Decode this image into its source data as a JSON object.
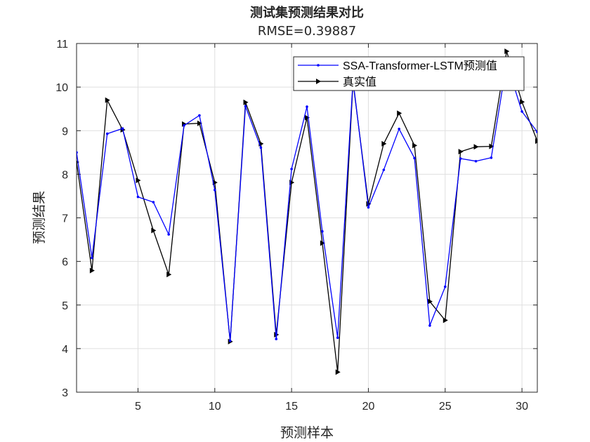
{
  "chart_data": {
    "type": "line",
    "title": "测试集预测结果对比",
    "subtitle": "RMSE=0.39887",
    "xlabel": "预测样本",
    "ylabel": "预测结果",
    "xlim": [
      1,
      31
    ],
    "ylim": [
      3,
      11
    ],
    "xticks": [
      5,
      10,
      15,
      20,
      25,
      30
    ],
    "yticks": [
      3,
      4,
      5,
      6,
      7,
      8,
      9,
      10,
      11
    ],
    "grid": true,
    "legend_position": "top-right",
    "x": [
      1,
      2,
      3,
      4,
      5,
      6,
      7,
      8,
      9,
      10,
      11,
      12,
      13,
      14,
      15,
      16,
      17,
      18,
      19,
      20,
      21,
      22,
      23,
      24,
      25,
      26,
      27,
      28,
      29,
      30,
      31
    ],
    "series": [
      {
        "name": "SSA-Transformer-LSTM预测值",
        "color": "#0000ff",
        "marker": "dot",
        "values": [
          8.5,
          6.08,
          8.93,
          9.05,
          7.48,
          7.36,
          6.62,
          9.12,
          9.35,
          7.64,
          4.18,
          9.56,
          8.61,
          4.22,
          8.12,
          9.55,
          6.69,
          4.25,
          10.16,
          7.24,
          8.1,
          9.04,
          8.37,
          4.53,
          5.42,
          8.36,
          8.3,
          8.38,
          10.56,
          9.44,
          8.97
        ]
      },
      {
        "name": "真实值",
        "color": "#000000",
        "marker": "triangle-right",
        "values": [
          8.28,
          5.79,
          9.7,
          9.02,
          7.86,
          6.71,
          5.7,
          9.15,
          9.17,
          7.81,
          4.16,
          9.65,
          8.7,
          4.32,
          7.81,
          9.3,
          6.42,
          3.46,
          10.12,
          7.32,
          8.7,
          9.4,
          8.66,
          5.08,
          4.65,
          8.52,
          8.63,
          8.64,
          10.82,
          9.66,
          8.76
        ]
      }
    ]
  },
  "colors": {
    "axis": "#262626",
    "grid": "#dfdfdf",
    "background": "#ffffff"
  }
}
